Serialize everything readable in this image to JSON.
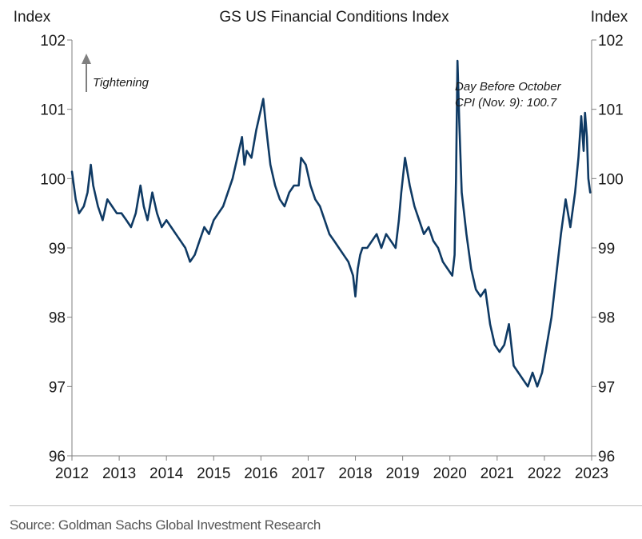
{
  "chart_data": {
    "type": "line",
    "title": "GS US Financial Conditions Index",
    "ylabel_left": "Index",
    "ylabel_right": "Index",
    "ylim": [
      96,
      102
    ],
    "yticks": [
      "96",
      "97",
      "98",
      "99",
      "100",
      "101",
      "102"
    ],
    "xlim": [
      2012,
      2023
    ],
    "xticks": [
      "2012",
      "2013",
      "2014",
      "2015",
      "2016",
      "2017",
      "2018",
      "2019",
      "2020",
      "2021",
      "2022",
      "2023"
    ],
    "grid": false,
    "legend": "none",
    "line_color": "#0f3a64",
    "annotations": {
      "tightening": "Tightening",
      "cpi_line1": "Day Before October",
      "cpi_line2": "CPI (Nov. 9): 100.7"
    },
    "series": [
      {
        "x": [
          2012.0,
          2012.08,
          2012.15,
          2012.25,
          2012.33,
          2012.4,
          2012.45,
          2012.55,
          2012.65,
          2012.75,
          2012.85,
          2012.95,
          2013.05,
          2013.15,
          2013.25,
          2013.35,
          2013.45,
          2013.52,
          2013.6,
          2013.7,
          2013.8,
          2013.9,
          2014.0,
          2014.1,
          2014.2,
          2014.3,
          2014.4,
          2014.5,
          2014.6,
          2014.7,
          2014.8,
          2014.9,
          2015.0,
          2015.1,
          2015.2,
          2015.3,
          2015.4,
          2015.5,
          2015.6,
          2015.65,
          2015.7,
          2015.8,
          2015.9,
          2016.0,
          2016.05,
          2016.1,
          2016.15,
          2016.2,
          2016.3,
          2016.4,
          2016.5,
          2016.6,
          2016.7,
          2016.8,
          2016.85,
          2016.95,
          2017.05,
          2017.15,
          2017.25,
          2017.35,
          2017.45,
          2017.55,
          2017.65,
          2017.75,
          2017.85,
          2017.95,
          2018.0,
          2018.05,
          2018.1,
          2018.15,
          2018.25,
          2018.35,
          2018.45,
          2018.55,
          2018.65,
          2018.75,
          2018.85,
          2018.92,
          2018.97,
          2019.05,
          2019.15,
          2019.25,
          2019.35,
          2019.45,
          2019.55,
          2019.65,
          2019.75,
          2019.85,
          2019.95,
          2020.05,
          2020.1,
          2020.13,
          2020.16,
          2020.2,
          2020.25,
          2020.3,
          2020.35,
          2020.45,
          2020.55,
          2020.65,
          2020.75,
          2020.85,
          2020.95,
          2021.05,
          2021.15,
          2021.25,
          2021.35,
          2021.45,
          2021.55,
          2021.65,
          2021.75,
          2021.85,
          2021.95,
          2022.05,
          2022.15,
          2022.25,
          2022.35,
          2022.45,
          2022.55,
          2022.65,
          2022.72,
          2022.78,
          2022.83,
          2022.86,
          2022.9,
          2022.93,
          2022.97
        ],
        "y": [
          100.1,
          99.7,
          99.5,
          99.6,
          99.8,
          100.2,
          99.9,
          99.6,
          99.4,
          99.7,
          99.6,
          99.5,
          99.5,
          99.4,
          99.3,
          99.5,
          99.9,
          99.6,
          99.4,
          99.8,
          99.5,
          99.3,
          99.4,
          99.3,
          99.2,
          99.1,
          99.0,
          98.8,
          98.9,
          99.1,
          99.3,
          99.2,
          99.4,
          99.5,
          99.6,
          99.8,
          100.0,
          100.3,
          100.6,
          100.2,
          100.4,
          100.3,
          100.7,
          101.0,
          101.15,
          100.8,
          100.5,
          100.2,
          99.9,
          99.7,
          99.6,
          99.8,
          99.9,
          99.9,
          100.3,
          100.2,
          99.9,
          99.7,
          99.6,
          99.4,
          99.2,
          99.1,
          99.0,
          98.9,
          98.8,
          98.6,
          98.3,
          98.7,
          98.9,
          99.0,
          99.0,
          99.1,
          99.2,
          99.0,
          99.2,
          99.1,
          99.0,
          99.4,
          99.8,
          100.3,
          99.9,
          99.6,
          99.4,
          99.2,
          99.3,
          99.1,
          99.0,
          98.8,
          98.7,
          98.6,
          98.9,
          100.0,
          101.7,
          100.8,
          99.8,
          99.5,
          99.2,
          98.7,
          98.4,
          98.3,
          98.4,
          97.9,
          97.6,
          97.5,
          97.6,
          97.9,
          97.3,
          97.2,
          97.1,
          97.0,
          97.2,
          97.0,
          97.2,
          97.6,
          98.0,
          98.6,
          99.2,
          99.7,
          99.3,
          99.8,
          100.3,
          100.9,
          100.4,
          100.95,
          100.6,
          100.0,
          99.8
        ]
      }
    ]
  },
  "source": "Source: Goldman Sachs Global Investment Research"
}
